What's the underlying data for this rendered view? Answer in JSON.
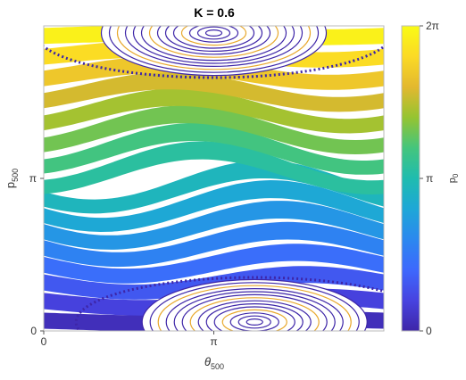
{
  "chart_data": {
    "type": "phase-portrait",
    "title": "K = 0.6",
    "xlabel": "θ",
    "xlabel_sub": "500",
    "ylabel": "p",
    "ylabel_sub": "500",
    "xlim": [
      0,
      6.283185
    ],
    "ylim": [
      0,
      6.283185
    ],
    "xticks": [
      0,
      {
        "value": 3.141593,
        "label": "π"
      }
    ],
    "yticks": [
      0,
      {
        "value": 3.141593,
        "label": "π"
      }
    ],
    "colorbar": {
      "label": "p",
      "label_sub": "0",
      "lim": [
        0,
        6.283185
      ],
      "ticks": [
        0,
        {
          "value": 3.141593,
          "label": "π"
        },
        {
          "value": 6.283185,
          "label": "2π"
        }
      ]
    },
    "colormap": [
      "#3e26a8",
      "#4743e0",
      "#3d68fd",
      "#2b88ef",
      "#1ea7d7",
      "#1fbcaf",
      "#44c57d",
      "#95c431",
      "#e3b82f",
      "#fbda25",
      "#f9fb15"
    ]
  }
}
